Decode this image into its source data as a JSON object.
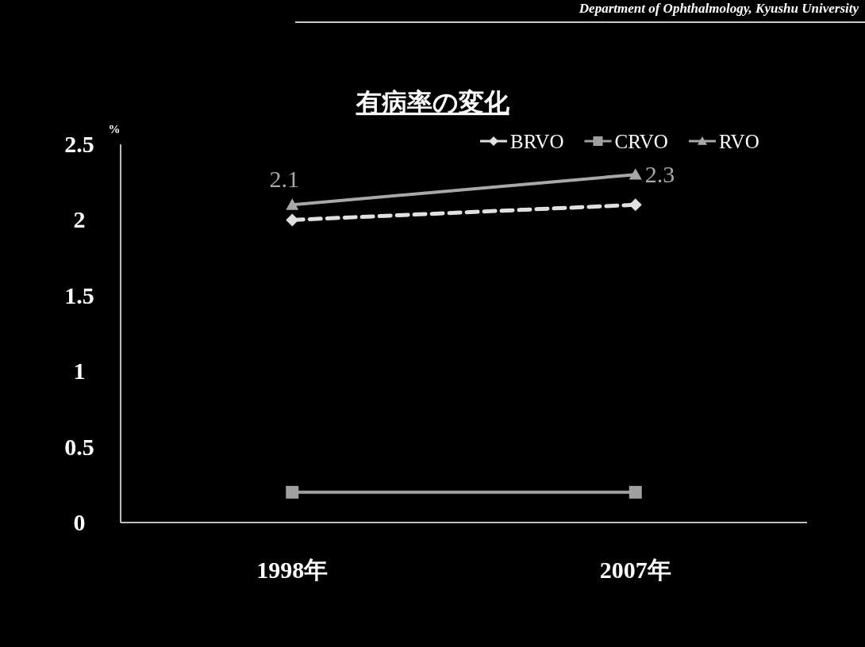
{
  "chart_data": {
    "type": "line",
    "title": "有病率の変化",
    "ylabel": "%",
    "annotations": [
      "Department of Ophthalmology, Kyushu University"
    ],
    "categories": [
      "1998年",
      "2007年"
    ],
    "series": [
      {
        "name": "BRVO",
        "color": "#e0e0e0",
        "values": [
          2.0,
          2.1
        ],
        "marker": "diamond",
        "line_style": "dashed"
      },
      {
        "name": "CRVO",
        "color": "#a0a0a0",
        "values": [
          0.2,
          0.2
        ],
        "marker": "square",
        "line_style": "solid"
      },
      {
        "name": "RVO",
        "color": "#a8a8a8",
        "values": [
          2.1,
          2.3
        ],
        "marker": "triangle",
        "line_style": "solid",
        "value_labels": [
          "2.1",
          "2.3"
        ]
      }
    ],
    "ylim": [
      0,
      2.5
    ],
    "yticks": [
      0,
      0.5,
      1,
      1.5,
      2,
      2.5
    ],
    "legend": "top right",
    "grid": false
  }
}
